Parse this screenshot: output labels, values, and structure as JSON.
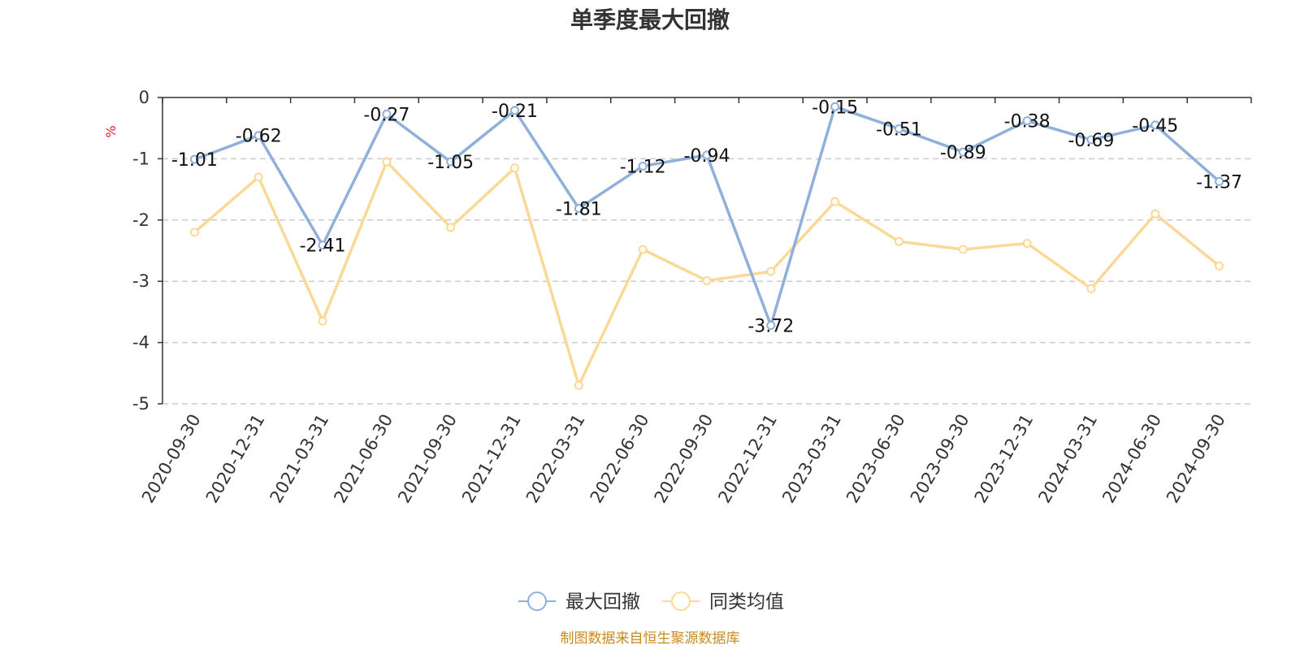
{
  "chart_data": {
    "type": "line",
    "title": "单季度最大回撤",
    "ylabel": "%",
    "ylim": [
      -5,
      0
    ],
    "yticks": [
      "0",
      "-1",
      "-2",
      "-3",
      "-4",
      "-5"
    ],
    "grid": true,
    "legend_position": "bottom-center",
    "categories": [
      "2020-09-30",
      "2020-12-31",
      "2021-03-31",
      "2021-06-30",
      "2021-09-30",
      "2021-12-31",
      "2022-03-31",
      "2022-06-30",
      "2022-09-30",
      "2022-12-31",
      "2023-03-31",
      "2023-06-30",
      "2023-09-30",
      "2023-12-31",
      "2024-03-31",
      "2024-06-30",
      "2024-09-30"
    ],
    "series": [
      {
        "name": "最大回撤",
        "color": "#8eb0db",
        "values": [
          -1.01,
          -0.62,
          -2.41,
          -0.27,
          -1.05,
          -0.21,
          -1.81,
          -1.12,
          -0.94,
          -3.72,
          -0.15,
          -0.51,
          -0.89,
          -0.38,
          -0.69,
          -0.45,
          -1.37
        ],
        "labels": [
          "-1.01",
          "-0.62",
          "-2.41",
          "-0.27",
          "-1.05",
          "-0.21",
          "-1.81",
          "-1.12",
          "-0.94",
          "-3.72",
          "-0.15",
          "-0.51",
          "-0.89",
          "-0.38",
          "-0.69",
          "-0.45",
          "-1.37"
        ]
      },
      {
        "name": "同类均值",
        "color": "#fad996",
        "values": [
          -2.2,
          -1.3,
          -3.65,
          -1.05,
          -2.12,
          -1.15,
          -4.7,
          -2.48,
          -2.99,
          -2.84,
          -1.7,
          -2.35,
          -2.48,
          -2.38,
          -3.12,
          -1.9,
          -2.75
        ]
      }
    ]
  },
  "source_text": "制图数据来自恒生聚源数据库",
  "colors": {
    "axis": "#333333",
    "grid": "#cccccc",
    "unit": "#e02020",
    "source": "#c98a1c"
  }
}
